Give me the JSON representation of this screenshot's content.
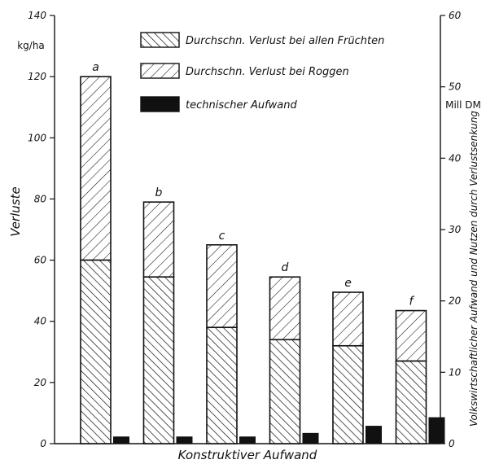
{
  "chart_data": {
    "type": "bar",
    "stacked": true,
    "categories": [
      "a",
      "b",
      "c",
      "d",
      "e",
      "f"
    ],
    "series": [
      {
        "name": "Durchschn. Verlust bei allen Früchten",
        "values": [
          60,
          54.5,
          38,
          34,
          32,
          27
        ],
        "pattern": "hatch-dense-backslash"
      },
      {
        "name": "Durchschn. Verlust bei Roggen",
        "values": [
          120,
          79,
          65,
          54.5,
          49.5,
          43.5
        ],
        "pattern": "hatch-slash"
      },
      {
        "name": "technischer Aufwand",
        "values": [
          1,
          1,
          1,
          1.5,
          2.5,
          3.7
        ],
        "axis": "right",
        "fill": "#111111"
      }
    ],
    "xlabel": "Konstruktiver Aufwand",
    "ylabel": "Verluste",
    "y_unit": "kg/ha",
    "ylim": [
      0,
      140
    ],
    "yticks": [
      0,
      20,
      40,
      60,
      80,
      100,
      120,
      140
    ],
    "y2label": "Volkswirtschaftlicher Aufwand und Nutzen durch Verlustsenkung",
    "y2_unit": "Mill DM",
    "y2lim": [
      0,
      60
    ],
    "y2ticks": [
      0,
      10,
      20,
      30,
      40,
      50,
      60
    ],
    "grid": false,
    "legend_position": "top-center"
  }
}
